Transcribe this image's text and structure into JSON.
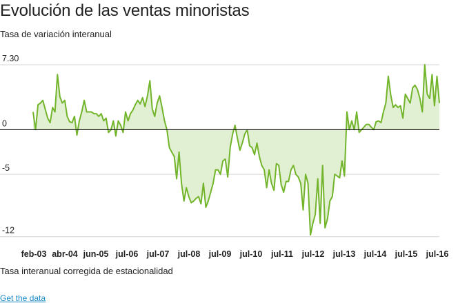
{
  "header": {
    "title": "Evolución de las ventas minoristas",
    "subtitle": "Tasa de variación interanual"
  },
  "footer": {
    "caption": "Tasa interanual corregida de estacionalidad",
    "link_label": "Get the data"
  },
  "colors": {
    "line": "#72b42a",
    "fill": "#e1efd2",
    "zero_line": "#111111",
    "grid": "#d4d4d4"
  },
  "chart_data": {
    "type": "area",
    "title": "Evolución de las ventas minoristas",
    "subtitle": "Tasa de variación interanual",
    "xlabel": "",
    "ylabel": "",
    "ylim": [
      -12.1,
      7.45
    ],
    "y_ticks": [
      7.3,
      0,
      -5,
      -12
    ],
    "y_tick_labels": [
      "7.30",
      "0",
      "-5",
      "-12"
    ],
    "x_tick_labels": [
      "feb-03",
      "abr-04",
      "jun-05",
      "jul-06",
      "jul-07",
      "jul-08",
      "jul-09",
      "jul-10",
      "jul-11",
      "jul-12",
      "jul-13",
      "jul-14",
      "jul-15",
      "jul-16"
    ],
    "grid": true,
    "legend": "none",
    "series": [
      {
        "values": [
          2.0,
          0.0,
          2.8,
          3.0,
          3.3,
          2.3,
          1.3,
          0.8,
          2.5,
          2.0,
          6.2,
          3.7,
          3.0,
          3.3,
          1.5,
          0.9,
          0.8,
          1.5,
          -0.6,
          1.0,
          2.0,
          3.3,
          2.0,
          2.0,
          2.0,
          1.8,
          1.8,
          1.5,
          1.8,
          1.0,
          1.3,
          -0.3,
          0.0,
          1.0,
          -0.7,
          1.0,
          0.5,
          -0.3,
          2.0,
          1.0,
          1.8,
          2.2,
          2.8,
          3.3,
          2.9,
          3.6,
          2.6,
          3.8,
          5.5,
          2.3,
          1.5,
          3.0,
          3.8,
          2.5,
          1.0,
          0.0,
          -2.0,
          -2.5,
          -3.0,
          -5.5,
          -2.5,
          -6.0,
          -8.0,
          -6.5,
          -7.5,
          -8.2,
          -8.0,
          -7.7,
          -7.5,
          -8.3,
          -6.0,
          -8.7,
          -8.0,
          -7.0,
          -6.0,
          -4.5,
          -4.5,
          -5.0,
          -3.5,
          -3.3,
          -5.3,
          -2.0,
          -0.5,
          0.5,
          -1.0,
          -2.3,
          -1.5,
          -0.5,
          0.0,
          -1.8,
          -2.0,
          -2.8,
          -1.5,
          -3.0,
          -4.0,
          -4.5,
          -6.5,
          -4.5,
          -6.0,
          -6.8,
          -3.8,
          -4.0,
          -6.2,
          -7.0,
          -5.8,
          -5.8,
          -4.5,
          -4.0,
          -5.0,
          -5.3,
          -6.0,
          -9.0,
          -5.0,
          -6.0,
          -11.8,
          -10.5,
          -9.5,
          -5.5,
          -10.5,
          -4.0,
          -11.0,
          -10.0,
          -8.0,
          -7.5,
          -5.0,
          -5.2,
          -5.4,
          -3.5,
          -5.2,
          2.0,
          0.0,
          1.0,
          0.0,
          2.0,
          -0.3,
          0.0,
          0.3,
          0.6,
          0.6,
          0.3,
          0.0,
          0.9,
          1.0,
          0.8,
          2.0,
          3.0,
          6.0,
          3.9,
          2.5,
          2.8,
          2.5,
          2.7,
          1.3,
          4.0,
          3.5,
          3.0,
          4.7,
          5.0,
          4.5,
          3.5,
          2.0,
          7.3,
          4.0,
          3.5,
          6.2,
          2.7,
          6.0,
          3.0
        ]
      }
    ]
  }
}
